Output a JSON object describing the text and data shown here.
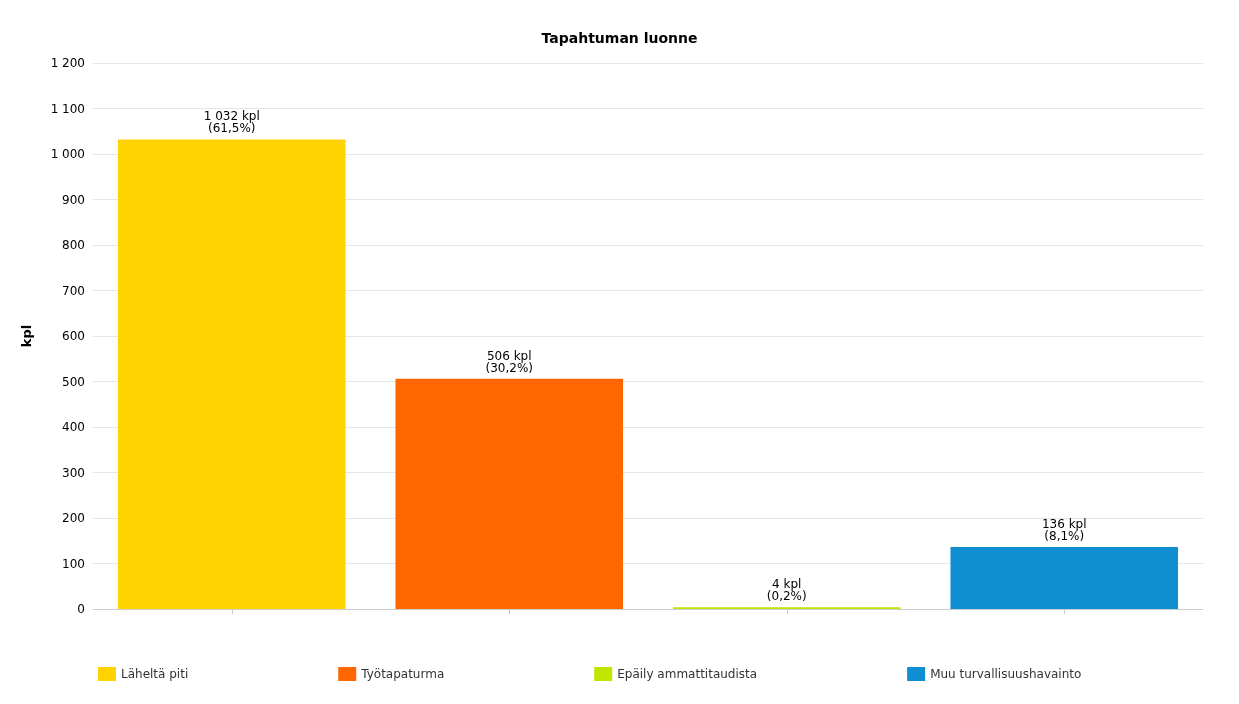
{
  "chart_data": {
    "type": "bar",
    "title": "Tapahtuman luonne",
    "ylabel": "kpl",
    "categories": [
      null,
      null,
      null,
      null
    ],
    "series": [
      {
        "name": "Läheltä piti",
        "color": "#ffd200",
        "values": [
          1032,
          null,
          null,
          null
        ],
        "value_labels": [
          "1 032 kpl\n(61,5%)",
          null,
          null,
          null
        ]
      },
      {
        "name": "Työtapaturma",
        "color": "#ff6600",
        "values": [
          null,
          506,
          null,
          null
        ],
        "value_labels": [
          null,
          "506 kpl\n(30,2%)",
          null,
          null
        ]
      },
      {
        "name": "Epäily ammattitaudista",
        "color": "#bfe500",
        "values": [
          null,
          null,
          4,
          null
        ],
        "value_labels": [
          null,
          null,
          "4 kpl\n(0,2%)",
          null
        ]
      },
      {
        "name": "Muu turvallisuushavainto",
        "color": "#0f8fd1",
        "values": [
          null,
          null,
          null,
          136
        ],
        "value_labels": [
          null,
          null,
          null,
          "136 kpl\n(8,1%)"
        ]
      }
    ],
    "ylim": [
      0,
      1200
    ],
    "yticks": [
      0,
      100,
      200,
      300,
      400,
      500,
      600,
      700,
      800,
      900,
      {
        "value": 1000,
        "label": "1 000"
      },
      {
        "value": 1100,
        "label": "1 100"
      },
      {
        "value": 1200,
        "label": "1 200"
      }
    ],
    "grid": "y",
    "legend": "bottom"
  }
}
